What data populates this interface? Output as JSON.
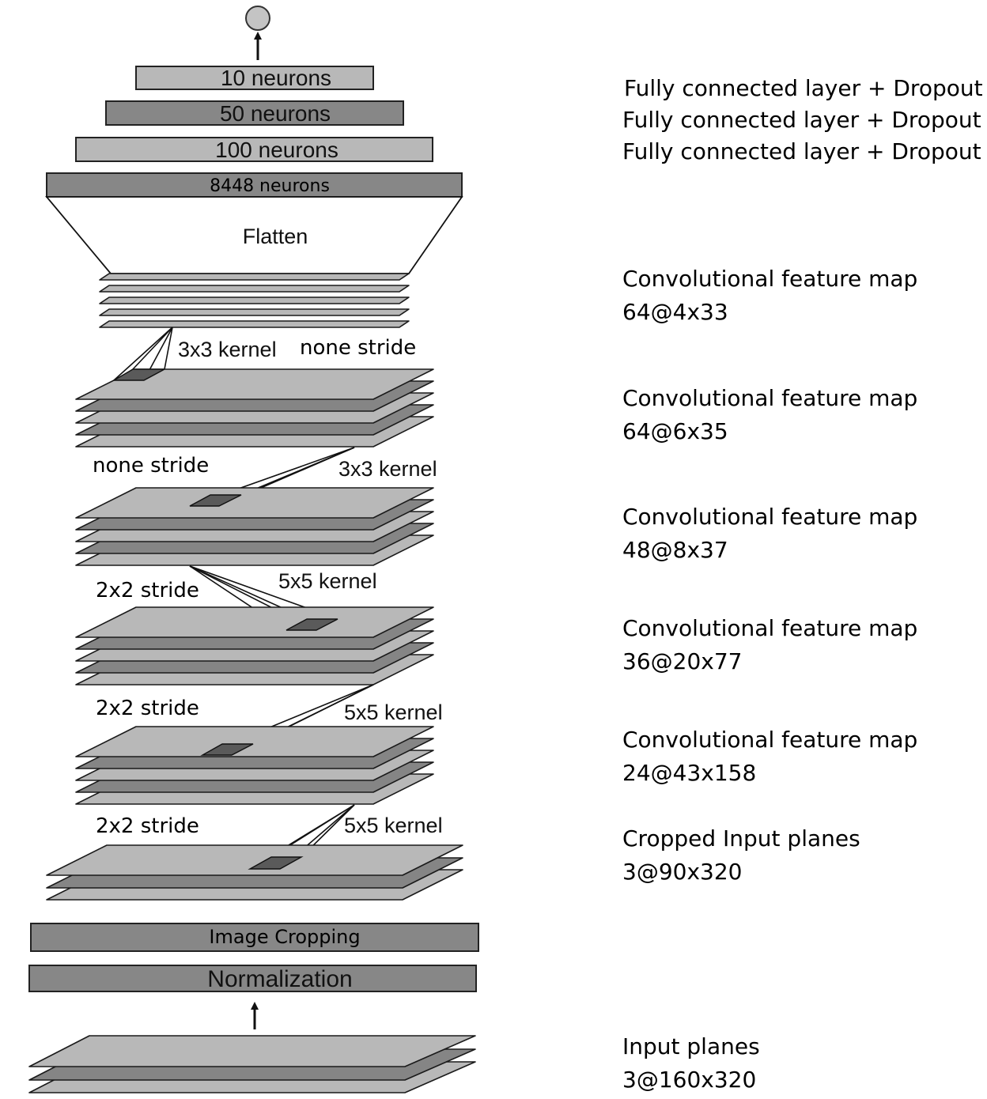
{
  "left": {
    "fc_bars": [
      "10 neurons",
      "50 neurons",
      "100 neurons",
      "8448 neurons"
    ],
    "flatten": "Flatten",
    "kernel_3x3_a": "3x3 kernel",
    "stride_none_a": "none stride",
    "stride_none_b": "none stride",
    "kernel_3x3_b": "3x3 kernel",
    "stride_2x2_a": "2x2 stride",
    "kernel_5x5_a": "5x5 kernel",
    "stride_2x2_b": "2x2 stride",
    "kernel_5x5_b": "5x5 kernel",
    "stride_2x2_c": "2x2 stride",
    "kernel_5x5_c": "5x5 kernel",
    "image_cropping": "Image Cropping",
    "normalization": "Normalization"
  },
  "right": {
    "fc_1": "Fully connected layer + Dropout",
    "fc_2": "Fully connected layer + Dropout",
    "fc_3": "Fully connected layer + Dropout",
    "conv5_title": "Convolutional feature map",
    "conv5_size": "64@4x33",
    "conv4_title": "Convolutional feature map",
    "conv4_size": "64@6x35",
    "conv3_title": "Convolutional feature map",
    "conv3_size": "48@8x37",
    "conv2_title": "Convolutional feature map",
    "conv2_size": "36@20x77",
    "conv1_title": "Convolutional feature map",
    "conv1_size": "24@43x158",
    "cropped_title": "Cropped Input planes",
    "cropped_size": "3@90x320",
    "input_title": "Input planes",
    "input_size": "3@160x320"
  },
  "colors": {
    "light_plane": "#b8b8b8",
    "dark_plane": "#858585",
    "output_node": "#c4c4c4"
  }
}
